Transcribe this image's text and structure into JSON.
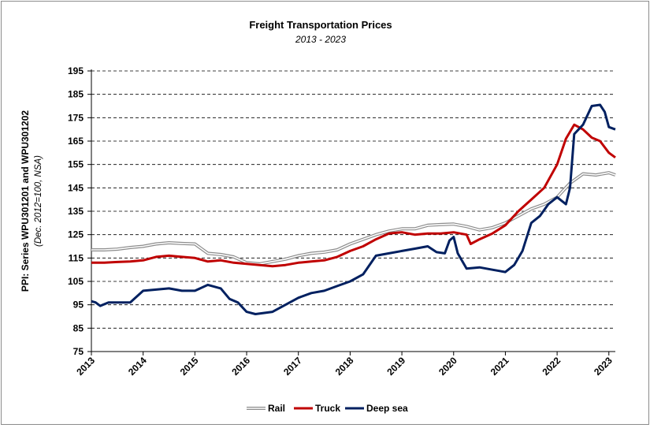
{
  "chart_data": {
    "type": "line",
    "title": "Freight Transportation Prices",
    "subtitle": "2013 - 2023",
    "ylabel": "PPI: Series WPU301201 and WPU301202",
    "ylabel_sub": "(Dec. 2012=100, NSA)",
    "xlabel": "",
    "ylim": [
      75,
      195
    ],
    "yticks": [
      75,
      85,
      95,
      105,
      115,
      125,
      135,
      145,
      155,
      165,
      175,
      185,
      195
    ],
    "xlim": [
      2013,
      2023.125
    ],
    "xticks": [
      "2013",
      "2014",
      "2015",
      "2016",
      "2017",
      "2018",
      "2019",
      "2020",
      "2021",
      "2022",
      "2023"
    ],
    "grid": "horizontal dashed",
    "legend_position": "bottom",
    "series": [
      {
        "name": "Rail",
        "color": "#8c8c8c",
        "style": "double",
        "points": [
          [
            2013,
            118.5
          ],
          [
            2013.25,
            118.5
          ],
          [
            2013.5,
            118.8
          ],
          [
            2013.75,
            119.5
          ],
          [
            2014,
            120
          ],
          [
            2014.25,
            121
          ],
          [
            2014.5,
            121.5
          ],
          [
            2014.75,
            121.2
          ],
          [
            2015,
            121
          ],
          [
            2015.25,
            117
          ],
          [
            2015.5,
            116.5
          ],
          [
            2015.75,
            115.5
          ],
          [
            2016,
            113
          ],
          [
            2016.25,
            112.5
          ],
          [
            2016.5,
            113.5
          ],
          [
            2016.75,
            114.5
          ],
          [
            2017,
            116
          ],
          [
            2017.25,
            117
          ],
          [
            2017.5,
            117.5
          ],
          [
            2017.75,
            118.5
          ],
          [
            2018,
            121
          ],
          [
            2018.25,
            123
          ],
          [
            2018.5,
            125
          ],
          [
            2018.75,
            126.5
          ],
          [
            2019,
            127.5
          ],
          [
            2019.25,
            127.5
          ],
          [
            2019.5,
            129
          ],
          [
            2019.75,
            129.3
          ],
          [
            2020,
            129.5
          ],
          [
            2020.25,
            128.5
          ],
          [
            2020.5,
            127
          ],
          [
            2020.75,
            128
          ],
          [
            2021,
            130
          ],
          [
            2021.25,
            133
          ],
          [
            2021.5,
            136
          ],
          [
            2021.75,
            138
          ],
          [
            2022,
            141
          ],
          [
            2022.25,
            147
          ],
          [
            2022.5,
            151
          ],
          [
            2022.75,
            150.5
          ],
          [
            2023,
            151.5
          ],
          [
            2023.125,
            150.5
          ]
        ]
      },
      {
        "name": "Truck",
        "color": "#c00000",
        "style": "solid",
        "points": [
          [
            2013,
            113
          ],
          [
            2013.25,
            113
          ],
          [
            2013.5,
            113.3
          ],
          [
            2013.75,
            113.5
          ],
          [
            2014,
            114
          ],
          [
            2014.25,
            115.5
          ],
          [
            2014.5,
            116
          ],
          [
            2014.75,
            115.5
          ],
          [
            2015,
            115
          ],
          [
            2015.25,
            113.5
          ],
          [
            2015.5,
            114
          ],
          [
            2015.75,
            113
          ],
          [
            2016,
            112.5
          ],
          [
            2016.25,
            112
          ],
          [
            2016.5,
            111.5
          ],
          [
            2016.75,
            112
          ],
          [
            2017,
            113
          ],
          [
            2017.25,
            113.5
          ],
          [
            2017.5,
            114
          ],
          [
            2017.75,
            115.5
          ],
          [
            2018,
            118
          ],
          [
            2018.25,
            120
          ],
          [
            2018.5,
            123
          ],
          [
            2018.75,
            125.5
          ],
          [
            2019,
            126
          ],
          [
            2019.25,
            125
          ],
          [
            2019.5,
            125.5
          ],
          [
            2019.75,
            125.5
          ],
          [
            2020,
            126
          ],
          [
            2020.25,
            125
          ],
          [
            2020.33,
            121
          ],
          [
            2020.5,
            123
          ],
          [
            2020.75,
            125.5
          ],
          [
            2021,
            129
          ],
          [
            2021.25,
            135
          ],
          [
            2021.5,
            140
          ],
          [
            2021.75,
            145
          ],
          [
            2022,
            155
          ],
          [
            2022.17,
            166
          ],
          [
            2022.33,
            172
          ],
          [
            2022.5,
            170
          ],
          [
            2022.67,
            166.5
          ],
          [
            2022.83,
            165
          ],
          [
            2023,
            160
          ],
          [
            2023.125,
            158
          ]
        ]
      },
      {
        "name": "Deep sea",
        "color": "#002060",
        "style": "solid",
        "points": [
          [
            2013,
            96.5
          ],
          [
            2013.08,
            96
          ],
          [
            2013.17,
            94.5
          ],
          [
            2013.33,
            96
          ],
          [
            2013.5,
            96
          ],
          [
            2013.75,
            96
          ],
          [
            2014,
            101
          ],
          [
            2014.25,
            101.5
          ],
          [
            2014.5,
            102
          ],
          [
            2014.75,
            101
          ],
          [
            2015,
            101
          ],
          [
            2015.25,
            103.5
          ],
          [
            2015.5,
            102
          ],
          [
            2015.67,
            97.5
          ],
          [
            2015.83,
            96
          ],
          [
            2016,
            92
          ],
          [
            2016.17,
            91
          ],
          [
            2016.5,
            92
          ],
          [
            2016.75,
            95
          ],
          [
            2017,
            98
          ],
          [
            2017.25,
            100
          ],
          [
            2017.5,
            101
          ],
          [
            2017.75,
            103
          ],
          [
            2018,
            105
          ],
          [
            2018.25,
            108
          ],
          [
            2018.5,
            116
          ],
          [
            2018.75,
            117
          ],
          [
            2019,
            118
          ],
          [
            2019.25,
            119
          ],
          [
            2019.5,
            120
          ],
          [
            2019.67,
            117.5
          ],
          [
            2019.83,
            117
          ],
          [
            2019.92,
            122.5
          ],
          [
            2020,
            124
          ],
          [
            2020.08,
            117
          ],
          [
            2020.25,
            110.5
          ],
          [
            2020.5,
            111
          ],
          [
            2020.75,
            110
          ],
          [
            2021,
            109
          ],
          [
            2021.17,
            112
          ],
          [
            2021.33,
            118
          ],
          [
            2021.5,
            130
          ],
          [
            2021.67,
            133
          ],
          [
            2021.83,
            138
          ],
          [
            2022,
            141
          ],
          [
            2022.17,
            138
          ],
          [
            2022.25,
            145
          ],
          [
            2022.33,
            168
          ],
          [
            2022.5,
            172
          ],
          [
            2022.67,
            180
          ],
          [
            2022.83,
            180.5
          ],
          [
            2022.92,
            177.5
          ],
          [
            2023,
            171
          ],
          [
            2023.125,
            170
          ]
        ]
      }
    ]
  }
}
